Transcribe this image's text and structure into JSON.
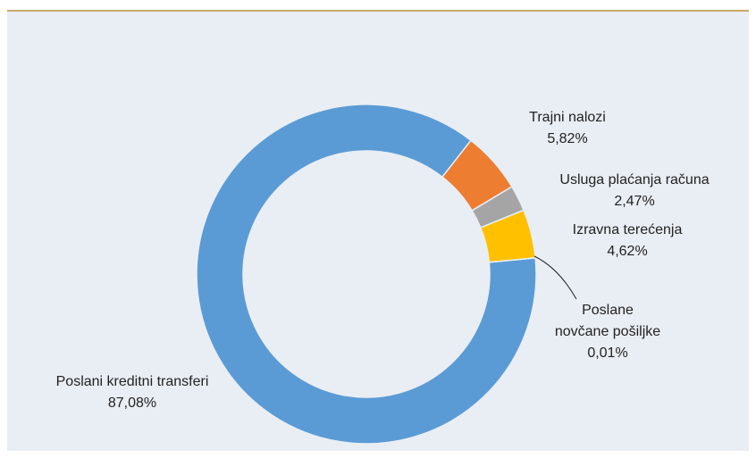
{
  "chart_data": {
    "type": "donut",
    "categories": [
      "Trajni nalozi",
      "Usluga plaćanja računa",
      "Izravna terećenja",
      "Poslane novčane pošiljke",
      "Poslani kreditni transferi"
    ],
    "values": [
      5.82,
      2.47,
      4.62,
      0.01,
      87.08
    ],
    "value_labels": [
      "5,82%",
      "2,47%",
      "4,62%",
      "0,01%",
      "87,08%"
    ],
    "colors": [
      "#ed7d31",
      "#a5a5a5",
      "#ffc000",
      "#4472c4",
      "#5b9bd5"
    ]
  }
}
